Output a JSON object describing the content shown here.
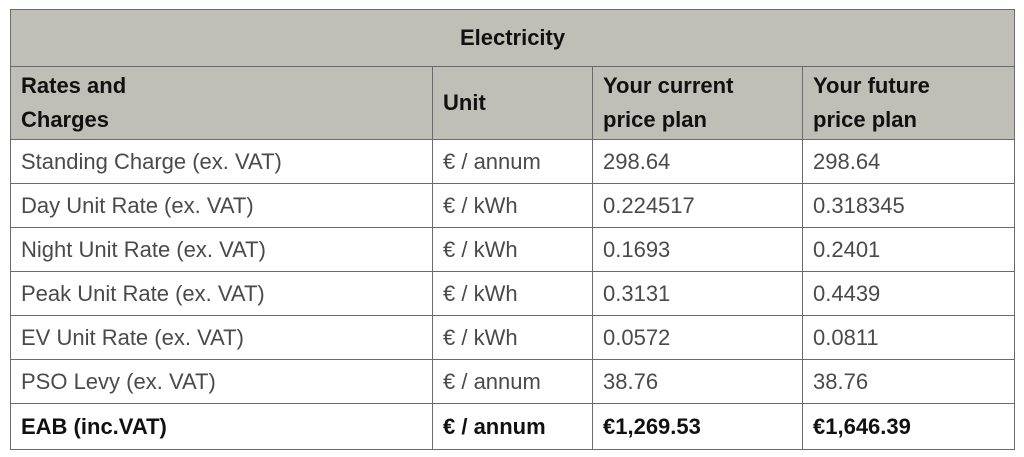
{
  "table": {
    "title": "Electricity",
    "header": [
      "Rates and Charges",
      "Unit",
      "Your current price plan",
      "Your future price plan"
    ],
    "rows": [
      [
        "Standing Charge (ex. VAT)",
        "€ / annum",
        "298.64",
        "298.64"
      ],
      [
        "Day Unit Rate (ex. VAT)",
        "€ / kWh",
        "0.224517",
        "0.318345"
      ],
      [
        "Night Unit Rate (ex. VAT)",
        "€ / kWh",
        "0.1693",
        "0.2401"
      ],
      [
        "Peak Unit Rate (ex. VAT)",
        "€ / kWh",
        "0.3131",
        "0.4439"
      ],
      [
        "EV Unit Rate (ex. VAT)",
        "€ / kWh",
        "0.0572",
        "0.0811"
      ],
      [
        "PSO Levy (ex. VAT)",
        "€ / annum",
        "38.76",
        "38.76"
      ],
      [
        "EAB (inc.VAT)",
        "€ / annum",
        "€1,269.53",
        "€1,646.39"
      ]
    ]
  }
}
